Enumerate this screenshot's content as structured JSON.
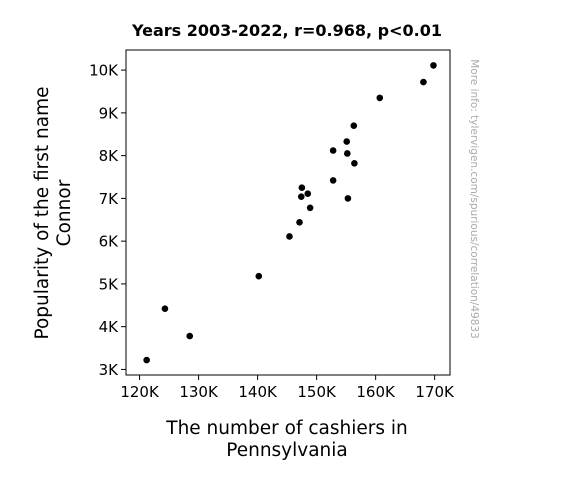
{
  "chart_data": {
    "type": "scatter",
    "title": "Years 2003-2022, r=0.968, p<0.01",
    "xlabel": [
      "The number of cashiers in",
      "Pennsylvania"
    ],
    "ylabel": [
      "Popularity of the first name",
      "Connor"
    ],
    "x_ticks": [
      {
        "value": 120000,
        "label": "120K"
      },
      {
        "value": 130000,
        "label": "130K"
      },
      {
        "value": 140000,
        "label": "140K"
      },
      {
        "value": 150000,
        "label": "150K"
      },
      {
        "value": 160000,
        "label": "160K"
      },
      {
        "value": 170000,
        "label": "170K"
      }
    ],
    "y_ticks": [
      {
        "value": 3000,
        "label": "3K"
      },
      {
        "value": 4000,
        "label": "4K"
      },
      {
        "value": 5000,
        "label": "5K"
      },
      {
        "value": 6000,
        "label": "6K"
      },
      {
        "value": 7000,
        "label": "7K"
      },
      {
        "value": 8000,
        "label": "8K"
      },
      {
        "value": 9000,
        "label": "9K"
      },
      {
        "value": 10000,
        "label": "10K"
      }
    ],
    "xlim": [
      117700,
      172600
    ],
    "ylim": [
      2870,
      10470
    ],
    "grid": false,
    "point_color": "#000000",
    "points": [
      {
        "x": 121200,
        "y": 3220
      },
      {
        "x": 124300,
        "y": 4420
      },
      {
        "x": 128500,
        "y": 3780
      },
      {
        "x": 140200,
        "y": 5180
      },
      {
        "x": 145400,
        "y": 6110
      },
      {
        "x": 147100,
        "y": 6440
      },
      {
        "x": 147400,
        "y": 7040
      },
      {
        "x": 147500,
        "y": 7250
      },
      {
        "x": 148500,
        "y": 7110
      },
      {
        "x": 148900,
        "y": 6780
      },
      {
        "x": 152800,
        "y": 7420
      },
      {
        "x": 152800,
        "y": 8120
      },
      {
        "x": 155100,
        "y": 8330
      },
      {
        "x": 155200,
        "y": 8050
      },
      {
        "x": 155300,
        "y": 7000
      },
      {
        "x": 156300,
        "y": 8700
      },
      {
        "x": 156400,
        "y": 7820
      },
      {
        "x": 160700,
        "y": 9350
      },
      {
        "x": 168100,
        "y": 9720
      },
      {
        "x": 169800,
        "y": 10110
      }
    ]
  },
  "watermark": "More info: tylervigen.com/spurious/correlation/49833"
}
